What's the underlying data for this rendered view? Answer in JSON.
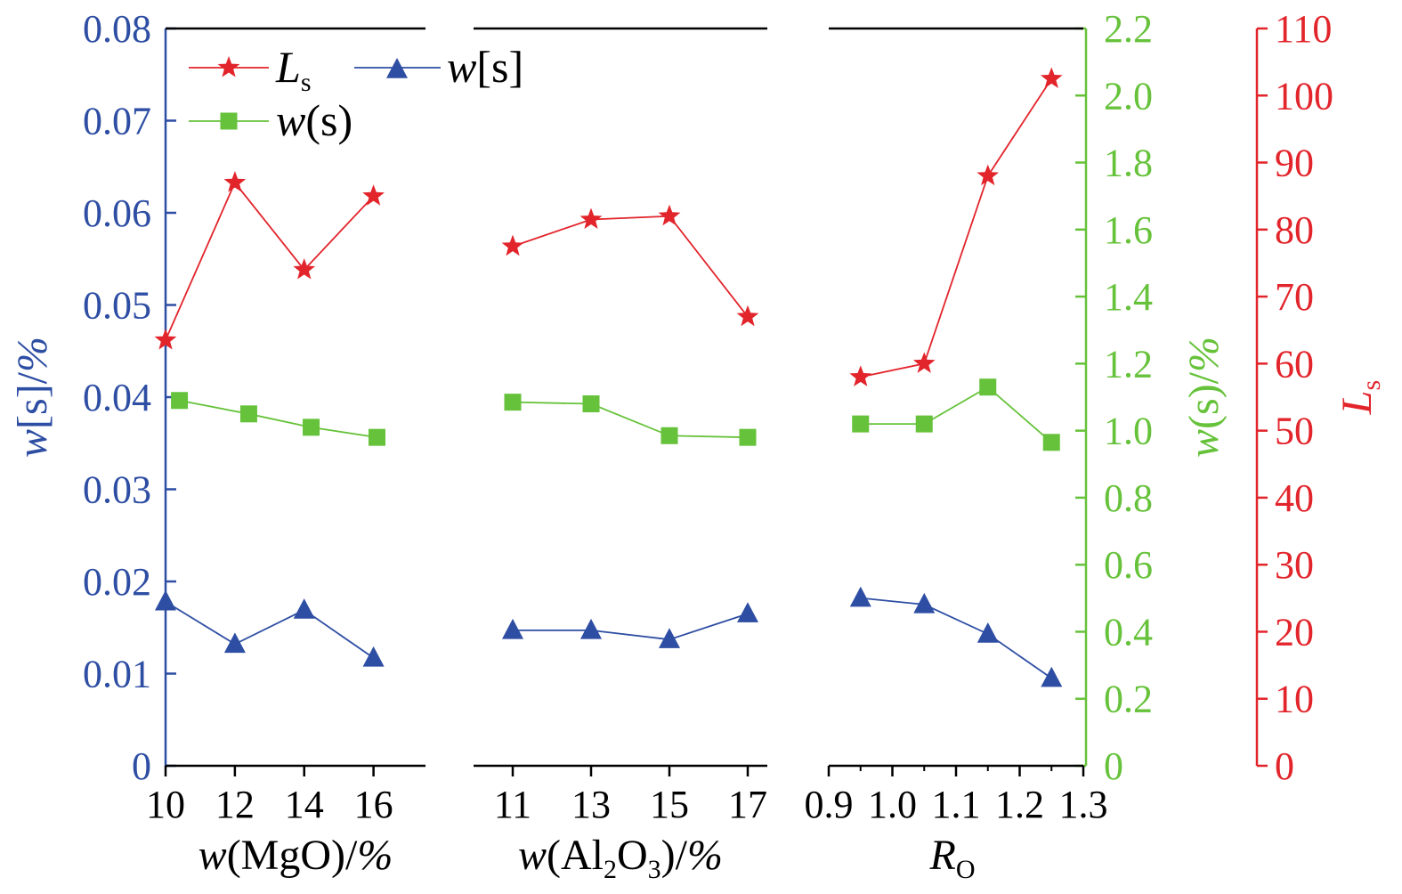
{
  "chart_data": {
    "type": "line",
    "colors": {
      "ws_bracket": "#2e4ea3",
      "ws_paren": "#66c23a",
      "Ls": "#e2242b",
      "frame": "#000000"
    },
    "axes": {
      "left": {
        "label": "w[s]/%",
        "ylim": [
          0,
          0.08
        ],
        "ticks": [
          "0",
          "0.01",
          "0.02",
          "0.03",
          "0.04",
          "0.05",
          "0.06",
          "0.07",
          "0.08"
        ]
      },
      "right_green": {
        "label": "w(s)/%",
        "ylim": [
          0,
          2.2
        ],
        "ticks": [
          "0",
          "0.2",
          "0.4",
          "0.6",
          "0.8",
          "1.0",
          "1.2",
          "1.4",
          "1.6",
          "1.8",
          "2.0",
          "2.2"
        ]
      },
      "right_red": {
        "label": "Ls",
        "ylim": [
          0,
          110
        ],
        "ticks": [
          "0",
          "10",
          "20",
          "30",
          "40",
          "50",
          "60",
          "70",
          "80",
          "90",
          "100",
          "110"
        ]
      }
    },
    "legend": {
      "position": "top-left",
      "entries": [
        {
          "key": "Ls",
          "main": "L",
          "sub": "s"
        },
        {
          "key": "ws_bracket",
          "label": "w[s]"
        },
        {
          "key": "ws_paren",
          "label": "w(s)"
        }
      ]
    },
    "panels": [
      {
        "xlabel": "w(MgO)/%",
        "xlim": [
          10,
          17.5
        ],
        "xticks": [
          "10",
          "12",
          "14",
          "16"
        ],
        "series": {
          "Ls": {
            "x": [
              10,
              12,
              14,
              16
            ],
            "y": [
              63.5,
              87,
              74,
              85
            ]
          },
          "ws_paren": {
            "x": [
              10.4,
              12.4,
              14.2,
              16.1
            ],
            "y": [
              1.09,
              1.05,
              1.01,
              0.98
            ]
          },
          "ws_bracket": {
            "x": [
              10,
              12,
              14,
              16
            ],
            "y": [
              0.0178,
              0.0132,
              0.0169,
              0.0117
            ]
          }
        }
      },
      {
        "xlabel": "w(Al2O3)/%",
        "xlim": [
          10,
          17.5
        ],
        "xticks": [
          "11",
          "13",
          "15",
          "17"
        ],
        "series": {
          "Ls": {
            "x": [
              11,
              13,
              15,
              17
            ],
            "y": [
              77.5,
              81.5,
              82,
              67
            ]
          },
          "ws_paren": {
            "x": [
              11,
              13,
              15,
              17
            ],
            "y": [
              1.085,
              1.08,
              0.985,
              0.98
            ]
          },
          "ws_bracket": {
            "x": [
              11,
              13,
              15,
              17
            ],
            "y": [
              0.0147,
              0.0147,
              0.0137,
              0.0165
            ]
          }
        }
      },
      {
        "xlabel": "RO",
        "xlim": [
          0.9,
          1.3
        ],
        "xticks": [
          "0.9",
          "1.0",
          "1.1",
          "1.2",
          "1.3"
        ],
        "series": {
          "Ls": {
            "x": [
              0.95,
              1.05,
              1.15,
              1.25
            ],
            "y": [
              58,
              60,
              88,
              102.5
            ]
          },
          "ws_paren": {
            "x": [
              0.95,
              1.05,
              1.15,
              1.25
            ],
            "y": [
              1.02,
              1.02,
              1.13,
              0.965
            ]
          },
          "ws_bracket": {
            "x": [
              0.95,
              1.05,
              1.15,
              1.25
            ],
            "y": [
              0.0182,
              0.0175,
              0.0143,
              0.0095
            ]
          }
        }
      }
    ]
  }
}
